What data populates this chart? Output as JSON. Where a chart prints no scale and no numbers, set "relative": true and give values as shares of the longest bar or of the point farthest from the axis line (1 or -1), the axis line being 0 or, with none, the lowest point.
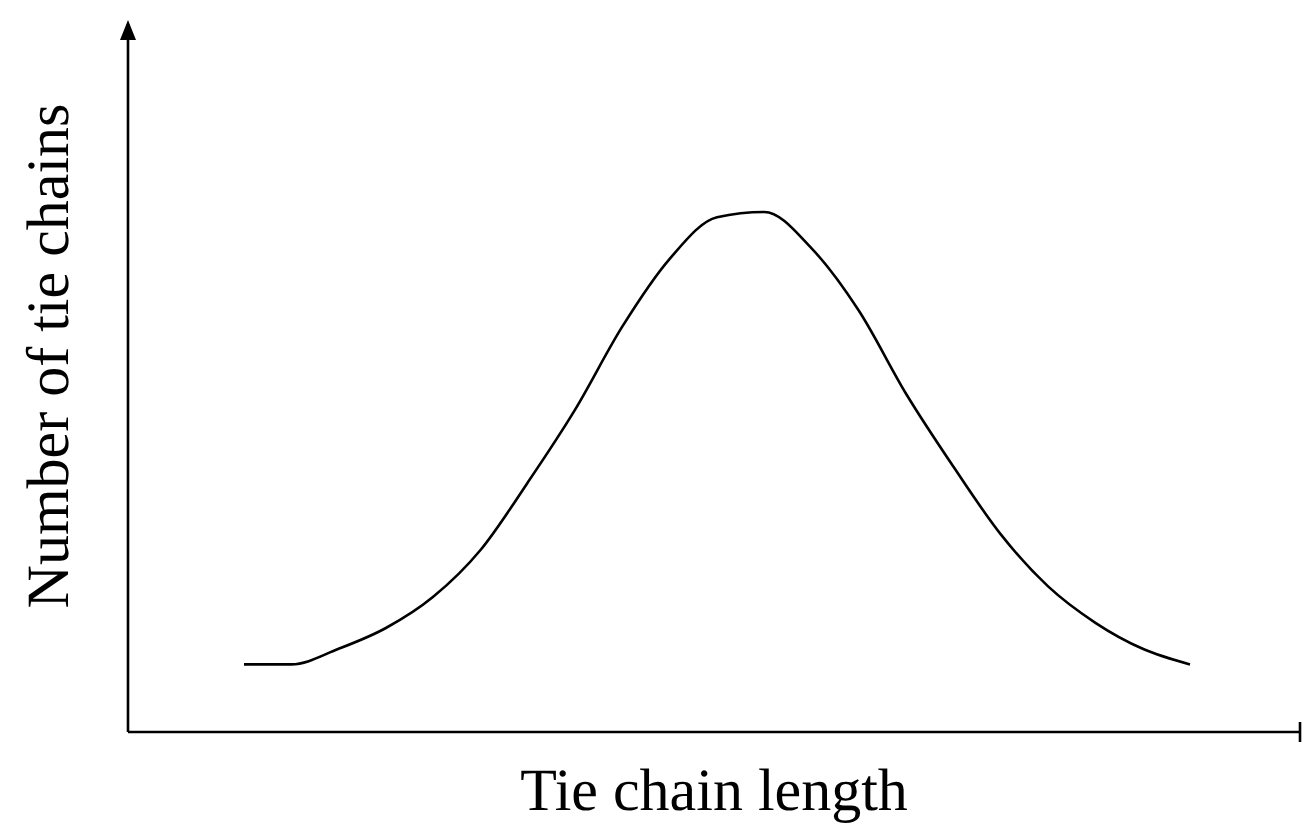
{
  "chart_data": {
    "type": "line",
    "relative": true,
    "xlabel": "Tie chain length",
    "ylabel": "Number of tie chains",
    "categories": [
      null,
      null,
      null,
      null,
      null,
      null,
      null,
      null,
      null,
      null,
      null,
      null,
      null,
      null,
      null,
      null,
      null,
      null,
      null,
      null,
      null
    ],
    "series": [
      {
        "color": "#000000",
        "values": [
          0.13,
          0.13,
          0.16,
          0.2,
          0.26,
          0.35,
          0.48,
          0.62,
          0.78,
          0.91,
          0.99,
          1,
          0.93,
          0.81,
          0.65,
          0.51,
          0.38,
          0.28,
          0.21,
          0.16,
          0.13
        ]
      }
    ],
    "marker": "none",
    "line_style": "solid"
  }
}
